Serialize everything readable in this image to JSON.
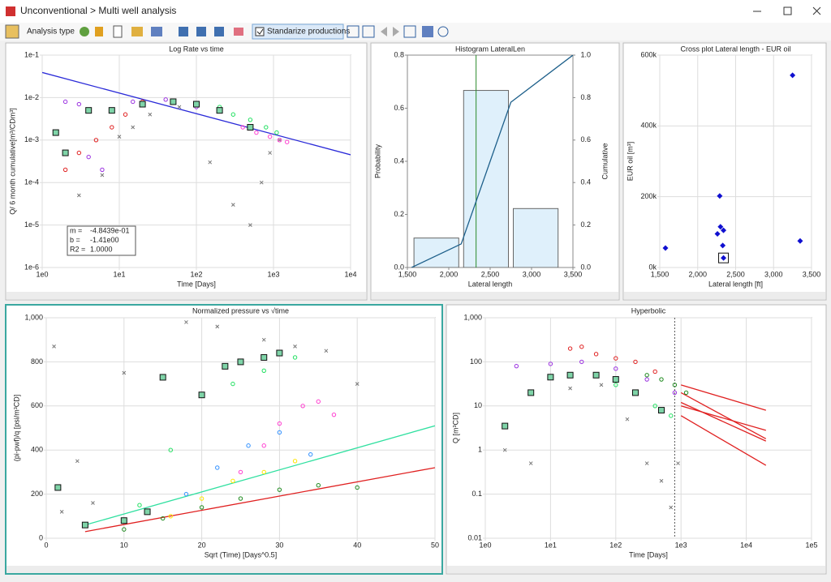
{
  "window": {
    "title": "Unconventional > Multi well analysis"
  },
  "toolbar": {
    "analysis_type": "Analysis type",
    "standardize": "Standarize productions"
  },
  "chart_data": [
    {
      "type": "scatter",
      "title": "Log Rate vs time",
      "xlabel": "Time [Days]",
      "ylabel": "Q/ 6 month cumulative[m³/CDm³]",
      "xlog": true,
      "ylog": true,
      "grid": true,
      "xlim": [
        1,
        10000
      ],
      "ylim": [
        1e-06,
        0.1
      ],
      "xticks": [
        {
          "value": 1,
          "label": "1e0"
        },
        {
          "value": 10,
          "label": "1e1"
        },
        {
          "value": 100,
          "label": "1e2"
        },
        {
          "value": 1000,
          "label": "1e3"
        },
        {
          "value": 10000,
          "label": "1e4"
        }
      ],
      "yticks": [
        {
          "value": 1e-06,
          "label": "1e-6"
        },
        {
          "value": 1e-05,
          "label": "1e-5"
        },
        {
          "value": 0.0001,
          "label": "1e-4"
        },
        {
          "value": 0.001,
          "label": "1e-3"
        },
        {
          "value": 0.01,
          "label": "1e-2"
        },
        {
          "value": 0.1,
          "label": "1e-1"
        }
      ],
      "stats": [
        {
          "label": "m =",
          "value": "-4.8439e-01"
        },
        {
          "label": "b =",
          "value": "-1.41e00"
        },
        {
          "label": "R2 =",
          "value": "1.0000"
        }
      ],
      "series": [
        {
          "mode": "line",
          "color": "#2a2ad8",
          "x": [
            1,
            10000
          ],
          "values": [
            0.039,
            0.00045
          ]
        },
        {
          "mode": "markers",
          "marker": "x",
          "color": "#777777",
          "x": [
            3,
            6,
            10,
            15,
            25,
            60,
            150,
            300,
            500,
            700,
            900,
            1200
          ],
          "values": [
            5e-05,
            0.00015,
            0.0012,
            0.002,
            0.004,
            0.006,
            0.0003,
            3e-05,
            1e-05,
            0.0001,
            0.0005,
            0.001
          ]
        },
        {
          "mode": "markers",
          "marker": "circle",
          "color": "#e02020",
          "x": [
            2,
            3,
            5,
            8,
            12,
            20
          ],
          "values": [
            0.0002,
            0.0005,
            0.001,
            0.002,
            0.004,
            0.008
          ]
        },
        {
          "mode": "markers",
          "marker": "circle",
          "color": "#9a30e0",
          "x": [
            2,
            3,
            4,
            6,
            15,
            40,
            100
          ],
          "values": [
            0.008,
            0.007,
            0.0004,
            0.0002,
            0.008,
            0.009,
            0.006
          ]
        },
        {
          "mode": "markers",
          "marker": "circle",
          "color": "#ff3fd0",
          "x": [
            400,
            600,
            900,
            1200,
            1500
          ],
          "values": [
            0.002,
            0.0015,
            0.0012,
            0.001,
            0.0009
          ]
        },
        {
          "mode": "markers",
          "marker": "circle",
          "color": "#20e060",
          "x": [
            200,
            300,
            500,
            800,
            1100
          ],
          "values": [
            0.006,
            0.004,
            0.003,
            0.002,
            0.0015
          ]
        },
        {
          "mode": "markers",
          "marker": "square",
          "color": "#7fd4a8",
          "x": [
            1.5,
            2,
            4,
            8,
            20,
            50,
            100,
            200,
            500
          ],
          "values": [
            0.0015,
            0.0005,
            0.005,
            0.005,
            0.007,
            0.008,
            0.007,
            0.005,
            0.002
          ]
        }
      ]
    },
    {
      "type": "histogram",
      "title": "Histogram LateralLen",
      "xlabel": "Lateral length",
      "ylabel": "Probability",
      "y2label": "Cumulative",
      "grid": false,
      "xlim": [
        1500,
        3500
      ],
      "ylim": [
        0,
        0.8
      ],
      "y2lim": [
        0,
        1
      ],
      "xticks": [
        {
          "value": 1500,
          "label": "1,500"
        },
        {
          "value": 2000,
          "label": "2,000"
        },
        {
          "value": 2500,
          "label": "2,500"
        },
        {
          "value": 3000,
          "label": "3,000"
        },
        {
          "value": 3500,
          "label": "3,500"
        }
      ],
      "yticks": [
        {
          "value": 0,
          "label": "0.0"
        },
        0.2,
        0.4,
        0.6,
        0.8
      ],
      "y2ticks": [
        {
          "value": 0,
          "label": "0.0"
        },
        0.2,
        0.4,
        0.6,
        0.8,
        {
          "value": 1,
          "label": "1.0"
        }
      ],
      "bins": [
        1550,
        2150,
        2750,
        3350
      ],
      "counts": [
        0.111,
        0.667,
        0.222
      ],
      "bar_color": "#dff0fb",
      "xref": 2330,
      "xref_color": "#2a8a2a",
      "series": [
        {
          "mode": "line",
          "axis": "y2",
          "color": "#1d5f8a",
          "x": [
            1550,
            2150,
            2750,
            3500
          ],
          "values": [
            0,
            0.111,
            0.778,
            1
          ]
        }
      ]
    },
    {
      "type": "scatter",
      "title": "Cross plot Lateral length  - EUR oil",
      "xlabel": "Lateral length [ft]",
      "ylabel": "EUR oil [m³]",
      "grid": true,
      "xlim": [
        1500,
        3500
      ],
      "ylim": [
        0,
        600000
      ],
      "xticks": [
        {
          "value": 1500,
          "label": "1,500"
        },
        {
          "value": 2000,
          "label": "2,000"
        },
        {
          "value": 2500,
          "label": "2,500"
        },
        {
          "value": 3000,
          "label": "3,000"
        },
        {
          "value": 3500,
          "label": "3,500"
        }
      ],
      "yticks": [
        {
          "value": 0,
          "label": "0k"
        },
        {
          "value": 200000,
          "label": "200k"
        },
        {
          "value": 400000,
          "label": "400k"
        },
        {
          "value": 600000,
          "label": "600k"
        }
      ],
      "series": [
        {
          "mode": "markers",
          "marker": "diamond",
          "color": "#1010d0",
          "x": [
            1575,
            2260,
            2290,
            2300,
            2340,
            2330,
            3250,
            3350
          ],
          "values": [
            55000,
            95000,
            202000,
            115000,
            105000,
            62000,
            543000,
            75000
          ]
        },
        {
          "mode": "markers",
          "marker": "boxed",
          "color": "#1010d0",
          "x": [
            2340
          ],
          "values": [
            27000
          ]
        }
      ]
    },
    {
      "type": "scatter",
      "title": "Normalized pressure vs √time",
      "xlabel": "Sqrt (Time) [Days^0.5]",
      "ylabel": "(pi-pwf)/q [psi/m³CD]",
      "grid": true,
      "xlim": [
        0,
        50
      ],
      "ylim": [
        0,
        1000
      ],
      "xticks": [
        0,
        10,
        20,
        30,
        40,
        50
      ],
      "yticks": [
        0,
        200,
        400,
        600,
        800,
        {
          "value": 1000,
          "label": "1,000"
        }
      ],
      "series": [
        {
          "mode": "line",
          "color": "#30e0a0",
          "x": [
            5,
            50
          ],
          "values": [
            60,
            510
          ]
        },
        {
          "mode": "line",
          "color": "#e02020",
          "x": [
            5,
            50
          ],
          "values": [
            30,
            320
          ]
        },
        {
          "mode": "markers",
          "marker": "x",
          "color": "#777777",
          "x": [
            1,
            2,
            4,
            6,
            10,
            18,
            22,
            28,
            32,
            36,
            40
          ],
          "values": [
            870,
            120,
            350,
            160,
            750,
            980,
            960,
            900,
            870,
            850,
            700
          ]
        },
        {
          "mode": "markers",
          "marker": "circle",
          "color": "#1e8a1e",
          "x": [
            10,
            15,
            20,
            25,
            30,
            35,
            40
          ],
          "values": [
            40,
            90,
            140,
            180,
            220,
            240,
            230
          ]
        },
        {
          "mode": "markers",
          "marker": "circle",
          "color": "#ff3fd0",
          "x": [
            25,
            28,
            30,
            33,
            35,
            37
          ],
          "values": [
            300,
            420,
            520,
            600,
            620,
            560
          ]
        },
        {
          "mode": "markers",
          "marker": "circle",
          "color": "#3090ff",
          "x": [
            18,
            22,
            26,
            30,
            34
          ],
          "values": [
            200,
            320,
            420,
            480,
            380
          ]
        },
        {
          "mode": "markers",
          "marker": "circle",
          "color": "#ffe600",
          "x": [
            16,
            20,
            24,
            28,
            32
          ],
          "values": [
            100,
            180,
            260,
            300,
            350
          ]
        },
        {
          "mode": "markers",
          "marker": "circle",
          "color": "#20e060",
          "x": [
            12,
            16,
            20,
            24,
            28,
            32
          ],
          "values": [
            150,
            400,
            650,
            700,
            760,
            820
          ]
        },
        {
          "mode": "markers",
          "marker": "square",
          "color": "#7fd4a8",
          "x": [
            1.5,
            5,
            10,
            13,
            15,
            20,
            23,
            25,
            28,
            30
          ],
          "values": [
            230,
            60,
            80,
            120,
            730,
            650,
            780,
            800,
            820,
            840
          ]
        }
      ]
    },
    {
      "type": "scatter",
      "title": "Hyperbolic",
      "xlabel": "Time [Days]",
      "ylabel": "Q [m³CD]",
      "xlog": true,
      "ylog": true,
      "grid": true,
      "xlim": [
        1,
        100000
      ],
      "ylim": [
        0.01,
        1000
      ],
      "xticks": [
        {
          "value": 1,
          "label": "1e0"
        },
        {
          "value": 10,
          "label": "1e1"
        },
        {
          "value": 100,
          "label": "1e2"
        },
        {
          "value": 1000,
          "label": "1e3"
        },
        {
          "value": 10000,
          "label": "1e4"
        },
        {
          "value": 100000,
          "label": "1e5"
        }
      ],
      "yticks": [
        0.01,
        0.1,
        1,
        10,
        100,
        {
          "value": 1000,
          "label": "1,000"
        }
      ],
      "xref": 800,
      "xref_color": "#555555",
      "series": [
        {
          "mode": "line",
          "color": "#e02020",
          "x": [
            1000,
            20000
          ],
          "values": [
            20,
            1.8
          ]
        },
        {
          "mode": "line",
          "color": "#e02020",
          "x": [
            1000,
            20000
          ],
          "values": [
            12,
            1.6
          ]
        },
        {
          "mode": "line",
          "color": "#e02020",
          "x": [
            1000,
            20000
          ],
          "values": [
            10,
            2.8
          ]
        },
        {
          "mode": "line",
          "color": "#e02020",
          "x": [
            1000,
            20000
          ],
          "values": [
            6,
            0.45
          ]
        },
        {
          "mode": "line",
          "color": "#e02020",
          "x": [
            1000,
            20000
          ],
          "values": [
            30,
            8
          ]
        },
        {
          "mode": "markers",
          "marker": "x",
          "color": "#777777",
          "x": [
            2,
            5,
            20,
            60,
            150,
            300,
            500,
            700,
            900
          ],
          "values": [
            1,
            0.5,
            25,
            30,
            5,
            0.5,
            0.2,
            0.05,
            0.5
          ]
        },
        {
          "mode": "markers",
          "marker": "circle",
          "color": "#e02020",
          "x": [
            20,
            30,
            50,
            100,
            200,
            400
          ],
          "values": [
            200,
            220,
            150,
            120,
            100,
            60
          ]
        },
        {
          "mode": "markers",
          "marker": "circle",
          "color": "#9a30e0",
          "x": [
            3,
            10,
            30,
            100,
            300,
            800
          ],
          "values": [
            80,
            90,
            100,
            70,
            40,
            20
          ]
        },
        {
          "mode": "markers",
          "marker": "circle",
          "color": "#1e8a1e",
          "x": [
            300,
            500,
            800,
            1200
          ],
          "values": [
            50,
            40,
            30,
            20
          ]
        },
        {
          "mode": "markers",
          "marker": "circle",
          "color": "#20e060",
          "x": [
            100,
            200,
            400,
            700
          ],
          "values": [
            30,
            20,
            10,
            6
          ]
        },
        {
          "mode": "markers",
          "marker": "square",
          "color": "#7fd4a8",
          "x": [
            2,
            5,
            10,
            20,
            50,
            100,
            200,
            500
          ],
          "values": [
            3.5,
            20,
            45,
            50,
            50,
            40,
            20,
            8
          ]
        }
      ]
    }
  ]
}
